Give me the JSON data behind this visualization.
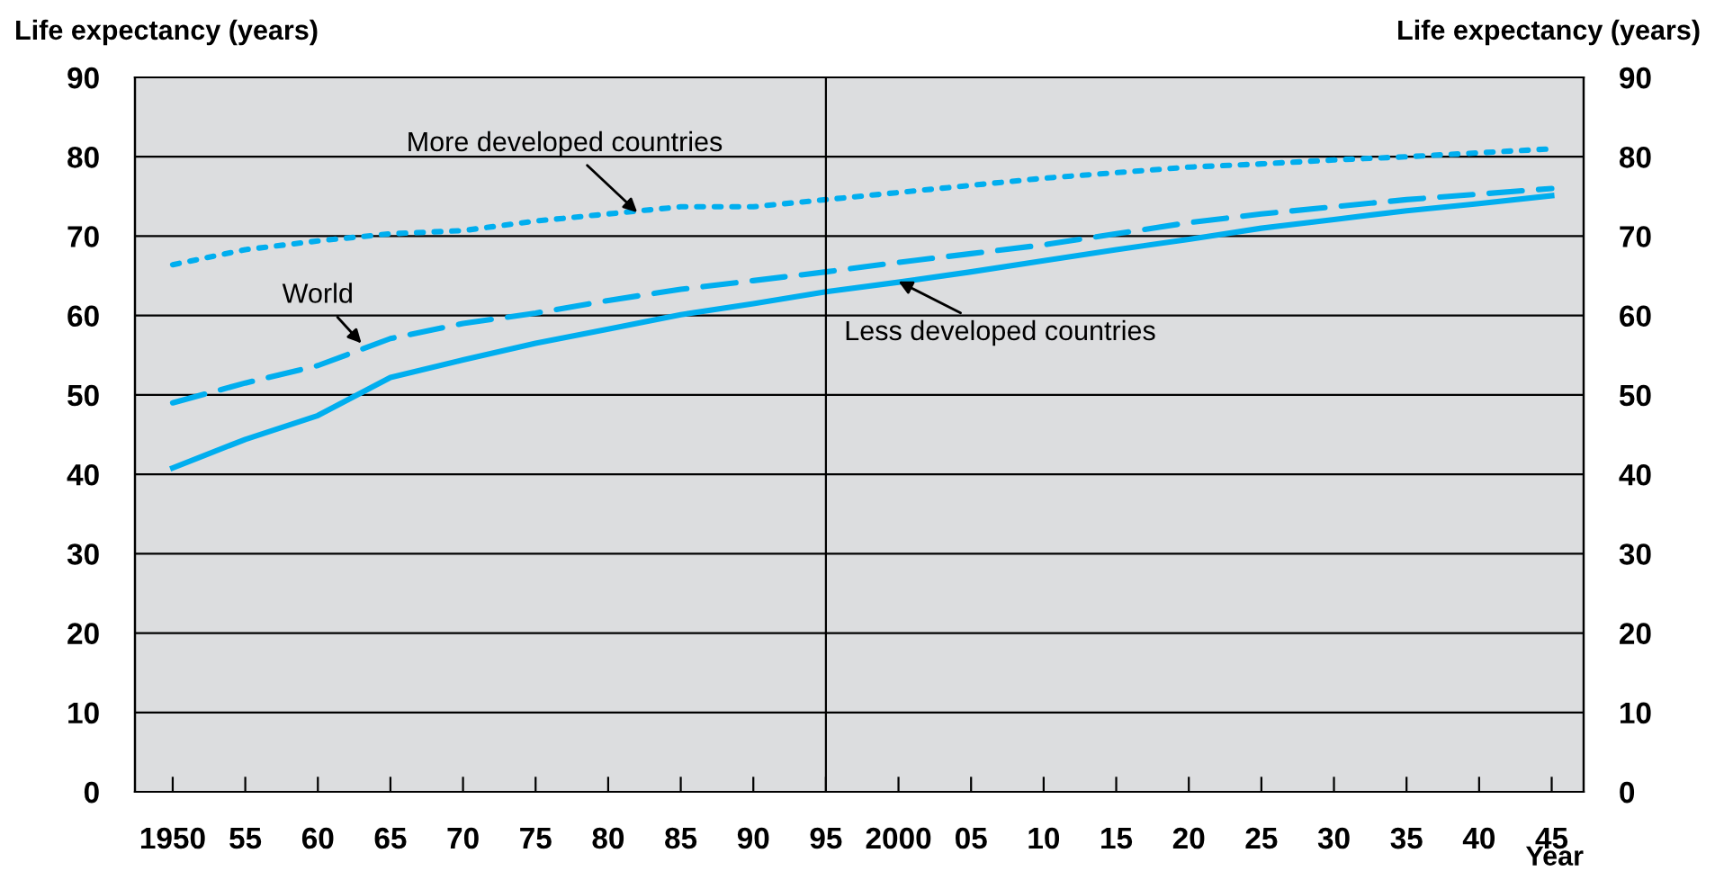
{
  "chart_data": {
    "type": "line",
    "ylabel": "Life expectancy (years)",
    "y2label": "Life expectancy (years)",
    "xlabel": "Year",
    "x": [
      1950,
      1955,
      1960,
      1965,
      1970,
      1975,
      1980,
      1985,
      1990,
      1995,
      2000,
      2005,
      2010,
      2015,
      2020,
      2025,
      2030,
      2035,
      2040,
      2045
    ],
    "series": [
      {
        "color": "#00aeef",
        "line_style": "solid",
        "values": [
          40.8,
          44.4,
          47.4,
          52.2,
          54.4,
          56.5,
          58.3,
          60.1,
          61.5,
          63.0,
          64.2,
          65.5,
          66.9,
          68.3,
          69.6,
          71.0,
          72.1,
          73.2,
          74.1,
          75.1
        ]
      },
      {
        "color": "#00aeef",
        "line_style": "dashed",
        "values": [
          49.0,
          51.5,
          53.7,
          57.1,
          59.0,
          60.3,
          61.9,
          63.3,
          64.4,
          65.5,
          66.7,
          67.8,
          68.9,
          70.3,
          71.7,
          72.8,
          73.7,
          74.6,
          75.3,
          76.0
        ]
      },
      {
        "color": "#00aeef",
        "line_style": "dotted",
        "values": [
          66.4,
          68.3,
          69.4,
          70.3,
          70.7,
          71.9,
          72.8,
          73.7,
          73.7,
          74.6,
          75.5,
          76.4,
          77.3,
          78.0,
          78.7,
          79.1,
          79.6,
          80.0,
          80.5,
          81.0
        ]
      }
    ],
    "annotations": [
      {
        "text": "More developed countries",
        "x": 1982,
        "y": 73
      },
      {
        "text": "World",
        "x": 1963,
        "y": 56.5
      },
      {
        "text": "Less developed countries",
        "x": 2000,
        "y": 64.3
      }
    ],
    "ref_lines": [
      {
        "axis": "x",
        "value": 1995,
        "color": "#000000"
      }
    ],
    "xlim": [
      1947.4,
      2047.2
    ],
    "ylim": [
      0,
      90
    ],
    "y2lim": [
      0,
      90
    ],
    "xticks": [
      {
        "value": 1950,
        "label": "1950"
      },
      {
        "value": 1955,
        "label": "55"
      },
      {
        "value": 1960,
        "label": "60"
      },
      {
        "value": 1965,
        "label": "65"
      },
      {
        "value": 1970,
        "label": "70"
      },
      {
        "value": 1975,
        "label": "75"
      },
      {
        "value": 1980,
        "label": "80"
      },
      {
        "value": 1985,
        "label": "85"
      },
      {
        "value": 1990,
        "label": "90"
      },
      {
        "value": 1995,
        "label": "95"
      },
      {
        "value": 2000,
        "label": "2000"
      },
      {
        "value": 2005,
        "label": "05"
      },
      {
        "value": 2010,
        "label": "10"
      },
      {
        "value": 2015,
        "label": "15"
      },
      {
        "value": 2020,
        "label": "20"
      },
      {
        "value": 2025,
        "label": "25"
      },
      {
        "value": 2030,
        "label": "30"
      },
      {
        "value": 2035,
        "label": "35"
      },
      {
        "value": 2040,
        "label": "40"
      },
      {
        "value": 2045,
        "label": "45"
      }
    ],
    "yticks": [
      0,
      10,
      20,
      30,
      40,
      50,
      60,
      70,
      80,
      90
    ],
    "y2ticks": [
      0,
      10,
      20,
      30,
      40,
      50,
      60,
      70,
      80,
      90
    ],
    "grid": "y",
    "legend": false
  }
}
